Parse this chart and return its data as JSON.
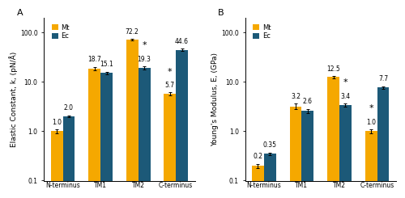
{
  "panel_A": {
    "title": "A",
    "ylabel": "Elastic Constant, k, (pN/Å)",
    "categories": [
      "N-terminus",
      "TM1",
      "TM2",
      "C-terminus"
    ],
    "Mt_values": [
      1.0,
      18.7,
      72.2,
      5.7
    ],
    "Ec_values": [
      2.0,
      15.1,
      19.3,
      44.6
    ],
    "Mt_errors": [
      0.08,
      1.5,
      2.0,
      0.4
    ],
    "Ec_errors": [
      0.1,
      1.0,
      1.2,
      2.5
    ],
    "ylim": [
      0.1,
      200
    ],
    "yticks": [
      0.1,
      1,
      10,
      100
    ],
    "significant_Mt": [
      false,
      false,
      false,
      true
    ],
    "significant_Ec": [
      false,
      false,
      true,
      false
    ]
  },
  "panel_B": {
    "title": "B",
    "ylabel": "Young's Modulus, E, (GPa)",
    "categories": [
      "N-terminus",
      "TM1",
      "TM2",
      "C-terminus"
    ],
    "Mt_values": [
      0.2,
      3.2,
      12.5,
      1.0
    ],
    "Ec_values": [
      0.35,
      2.6,
      3.4,
      7.7
    ],
    "Mt_errors": [
      0.02,
      0.4,
      0.5,
      0.08
    ],
    "Ec_errors": [
      0.02,
      0.25,
      0.25,
      0.45
    ],
    "ylim": [
      0.1,
      200
    ],
    "yticks": [
      0.1,
      1,
      10,
      100
    ],
    "significant_Mt": [
      false,
      false,
      false,
      true
    ],
    "significant_Ec": [
      false,
      false,
      true,
      false
    ]
  },
  "Mt_color": "#F5A800",
  "Ec_color": "#1C5978",
  "bar_width": 0.32,
  "legend_labels": [
    "Mt",
    "Ec"
  ],
  "background_color": "#FFFFFF",
  "label_fontsize": 5.5,
  "tick_fontsize": 5.5,
  "ylabel_fontsize": 6.5,
  "title_fontsize": 8,
  "star_fontsize": 8,
  "legend_fontsize": 6
}
